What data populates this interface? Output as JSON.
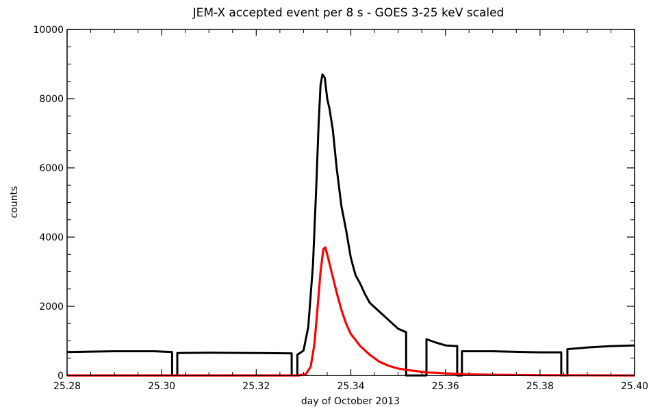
{
  "chart_data": {
    "type": "line",
    "title": "JEM-X accepted event per 8 s  - GOES 3-25 keV scaled",
    "xlabel": "day of October 2013",
    "ylabel": "counts",
    "xlim": [
      25.28,
      25.4
    ],
    "ylim": [
      0,
      10000
    ],
    "grid": false,
    "x_ticks": [
      "25.28",
      "25.30",
      "25.32",
      "25.34",
      "25.36",
      "25.38",
      "25.40"
    ],
    "y_ticks": [
      "0",
      "2000",
      "4000",
      "6000",
      "8000",
      "10000"
    ],
    "colors": {
      "jemx": "#000000",
      "goes": "#ff0000"
    },
    "series": [
      {
        "color": "#000000",
        "points": [
          [
            25.28,
            680
          ],
          [
            25.29,
            700
          ],
          [
            25.2985,
            700
          ],
          [
            25.3022,
            680
          ],
          [
            25.3022,
            0
          ],
          [
            25.3033,
            0
          ],
          [
            25.3033,
            650
          ],
          [
            25.31,
            660
          ],
          [
            25.32,
            650
          ],
          [
            25.3275,
            640
          ],
          [
            25.3275,
            0
          ],
          [
            25.3287,
            0
          ],
          [
            25.3287,
            600
          ],
          [
            25.33,
            720
          ],
          [
            25.331,
            1400
          ],
          [
            25.332,
            3200
          ],
          [
            25.3327,
            5500
          ],
          [
            25.3332,
            7300
          ],
          [
            25.3336,
            8400
          ],
          [
            25.334,
            8700
          ],
          [
            25.3345,
            8600
          ],
          [
            25.335,
            8000
          ],
          [
            25.3355,
            7700
          ],
          [
            25.3362,
            7100
          ],
          [
            25.337,
            6000
          ],
          [
            25.338,
            4900
          ],
          [
            25.339,
            4200
          ],
          [
            25.34,
            3400
          ],
          [
            25.341,
            2900
          ],
          [
            25.342,
            2650
          ],
          [
            25.343,
            2350
          ],
          [
            25.344,
            2100
          ],
          [
            25.346,
            1850
          ],
          [
            25.348,
            1600
          ],
          [
            25.35,
            1350
          ],
          [
            25.3517,
            1250
          ],
          [
            25.3517,
            0
          ],
          [
            25.356,
            0
          ],
          [
            25.356,
            1050
          ],
          [
            25.358,
            950
          ],
          [
            25.36,
            870
          ],
          [
            25.3625,
            850
          ],
          [
            25.3625,
            0
          ],
          [
            25.3635,
            0
          ],
          [
            25.3635,
            700
          ],
          [
            25.37,
            700
          ],
          [
            25.38,
            670
          ],
          [
            25.3845,
            670
          ],
          [
            25.3845,
            0
          ],
          [
            25.3858,
            0
          ],
          [
            25.3858,
            760
          ],
          [
            25.39,
            810
          ],
          [
            25.395,
            850
          ],
          [
            25.4,
            870
          ]
        ]
      },
      {
        "color": "#ff0000",
        "points": [
          [
            25.28,
            0
          ],
          [
            25.329,
            0
          ],
          [
            25.3305,
            40
          ],
          [
            25.3315,
            250
          ],
          [
            25.3323,
            900
          ],
          [
            25.333,
            2000
          ],
          [
            25.3336,
            3000
          ],
          [
            25.3342,
            3650
          ],
          [
            25.3346,
            3700
          ],
          [
            25.3352,
            3400
          ],
          [
            25.336,
            2950
          ],
          [
            25.337,
            2400
          ],
          [
            25.338,
            1900
          ],
          [
            25.339,
            1500
          ],
          [
            25.34,
            1200
          ],
          [
            25.342,
            850
          ],
          [
            25.344,
            600
          ],
          [
            25.346,
            400
          ],
          [
            25.348,
            280
          ],
          [
            25.35,
            200
          ],
          [
            25.353,
            140
          ],
          [
            25.356,
            90
          ],
          [
            25.36,
            60
          ],
          [
            25.365,
            35
          ],
          [
            25.37,
            20
          ],
          [
            25.38,
            5
          ],
          [
            25.4,
            0
          ]
        ]
      }
    ]
  }
}
